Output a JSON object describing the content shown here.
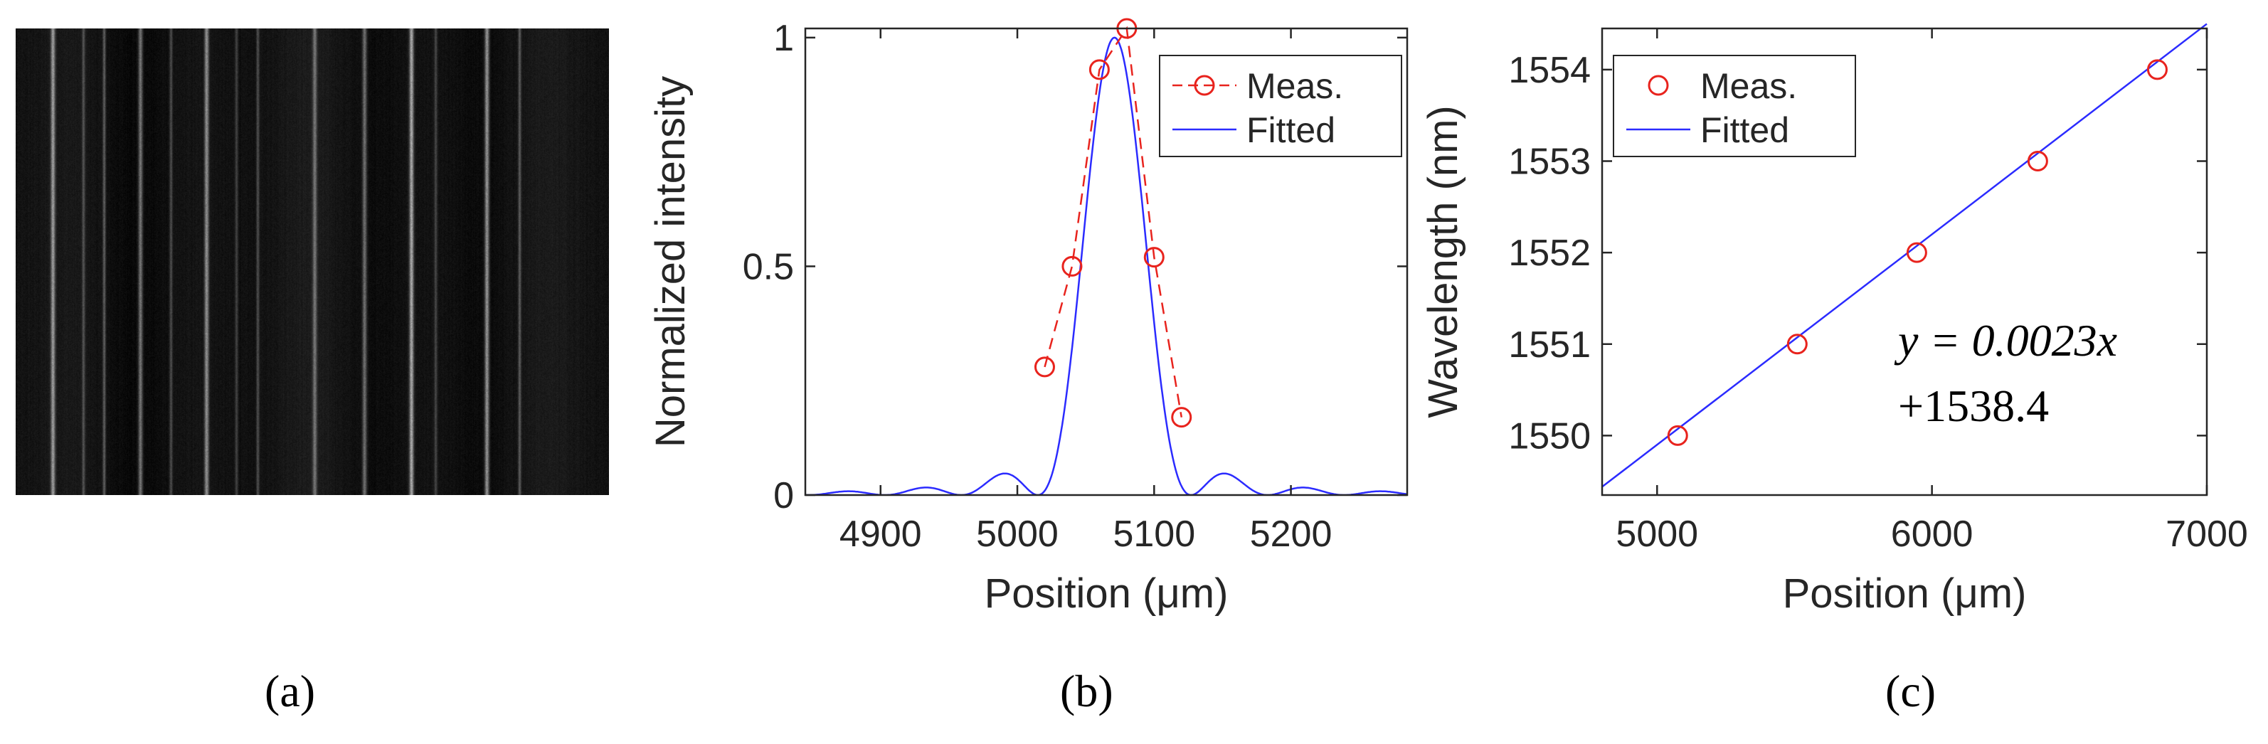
{
  "panels": {
    "a": {
      "label": "(a)",
      "image": "speckle-image-vertical-lines"
    },
    "b": {
      "label": "(b)"
    },
    "c": {
      "label": "(c)"
    }
  },
  "chart_data": [
    {
      "type": "line",
      "panel": "b",
      "title": "",
      "xlabel": "Position (μm)",
      "ylabel": "Normalized intensity",
      "xlim": [
        4845,
        5285
      ],
      "ylim": [
        0,
        1.02
      ],
      "xticks": [
        4900,
        5000,
        5100,
        5200
      ],
      "yticks": [
        0,
        0.5,
        1
      ],
      "ytick_labels": [
        "0",
        "0.5",
        "1"
      ],
      "grid": false,
      "legend": {
        "placement": "top-right",
        "entries": [
          "Meas.",
          "Fitted"
        ]
      },
      "series": [
        {
          "name": "Meas.",
          "style": "dashed-line-circle-markers",
          "color": "#e8231d",
          "x": [
            5020,
            5040,
            5060,
            5080,
            5100,
            5120
          ],
          "y": [
            0.28,
            0.5,
            0.93,
            1.02,
            0.52,
            0.17
          ]
        },
        {
          "name": "Fitted",
          "style": "solid-line",
          "color": "#2b2bff",
          "model": "sinc-squared",
          "center": 5071,
          "first_zero_offset": 56
        }
      ]
    },
    {
      "type": "scatter",
      "panel": "c",
      "title": "",
      "xlabel": "Position (μm)",
      "ylabel": "Wavelength (nm)",
      "xlim": [
        4800,
        7000
      ],
      "ylim": [
        1549.35,
        1554.45
      ],
      "xticks": [
        5000,
        6000,
        7000
      ],
      "yticks": [
        1550,
        1551,
        1552,
        1553,
        1554
      ],
      "grid": false,
      "legend": {
        "placement": "top-left",
        "entries": [
          "Meas.",
          "Fitted"
        ]
      },
      "annotation": {
        "line1": "y = 0.0023x",
        "line2": "+1538.4"
      },
      "series": [
        {
          "name": "Meas.",
          "style": "circle-markers",
          "color": "#e8231d",
          "x": [
            5075,
            5510,
            5945,
            6385,
            6820
          ],
          "y": [
            1550,
            1551,
            1552,
            1553,
            1554
          ]
        },
        {
          "name": "Fitted",
          "style": "solid-line",
          "color": "#2b2bff",
          "slope": 0.0023,
          "intercept": 1538.4
        }
      ]
    }
  ]
}
